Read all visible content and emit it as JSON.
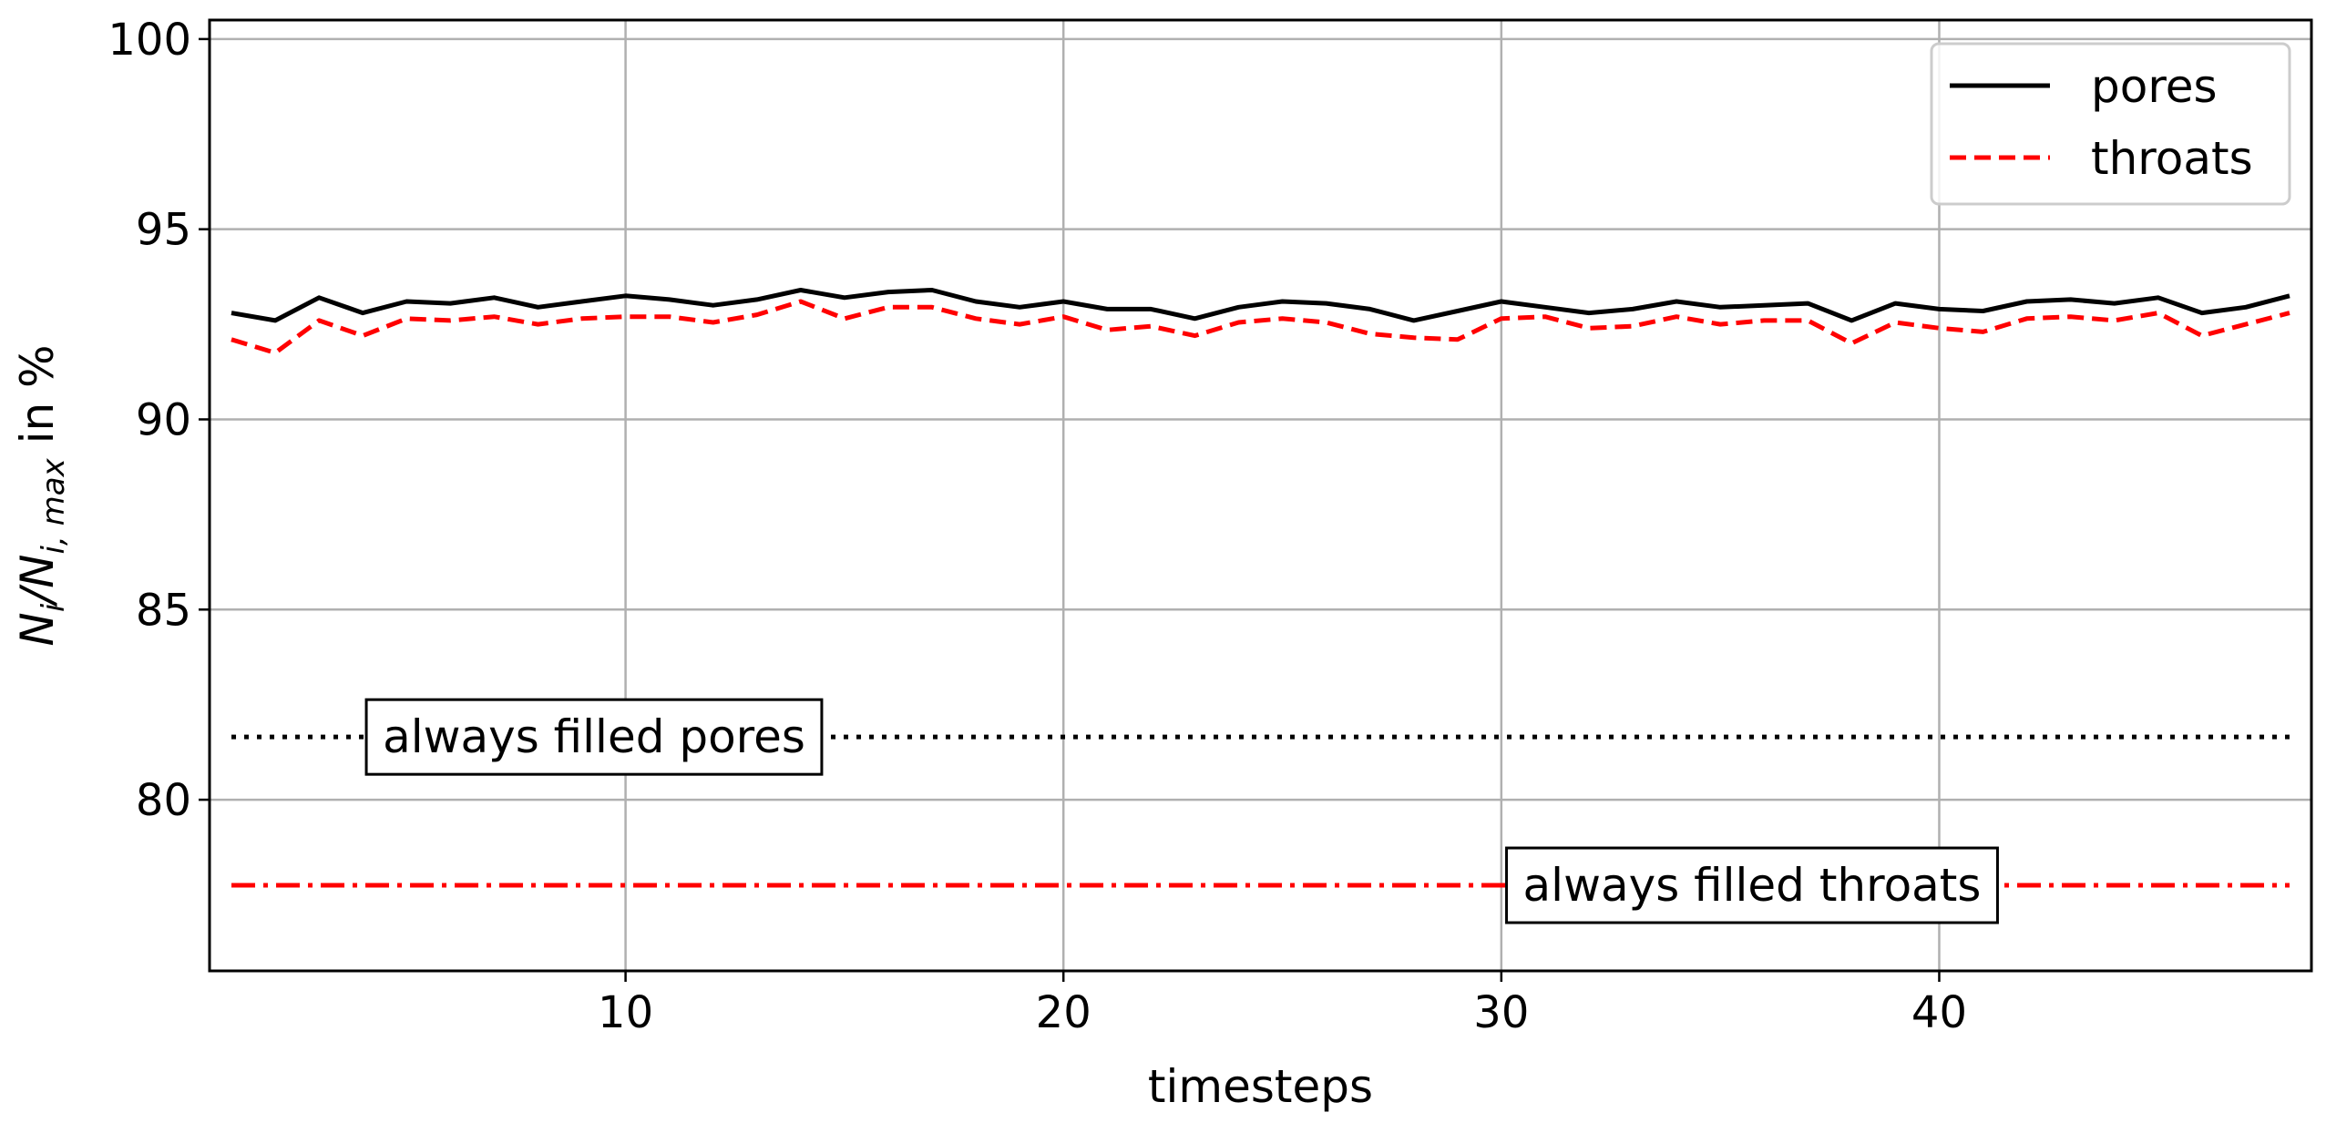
{
  "chart_data": {
    "type": "line",
    "xlabel": "timesteps",
    "ylabel": "N_i/N_i,max in %",
    "ylabel_parts": {
      "main": "N",
      "sub1": "i",
      "slash": "/N",
      "sub2": "i, max",
      "suffix": " in %"
    },
    "xlim": [
      0.5,
      48.5
    ],
    "ylim": [
      75.5,
      100.5
    ],
    "xticks": [
      10,
      20,
      30,
      40
    ],
    "yticks": [
      80,
      85,
      90,
      95,
      100
    ],
    "xtick_labels": [
      "10",
      "20",
      "30",
      "40"
    ],
    "ytick_labels": [
      "80",
      "85",
      "90",
      "95",
      "100"
    ],
    "grid": true,
    "legend_position": "top-right",
    "x": [
      1,
      2,
      3,
      4,
      5,
      6,
      7,
      8,
      9,
      10,
      11,
      12,
      13,
      14,
      15,
      16,
      17,
      18,
      19,
      20,
      21,
      22,
      23,
      24,
      25,
      26,
      27,
      28,
      29,
      30,
      31,
      32,
      33,
      34,
      35,
      36,
      37,
      38,
      39,
      40,
      41,
      42,
      43,
      44,
      45,
      46,
      47,
      48
    ],
    "series": [
      {
        "name": "pores",
        "color": "#000000",
        "style": "solid",
        "values": [
          92.8,
          92.6,
          93.2,
          92.8,
          93.1,
          93.05,
          93.2,
          92.95,
          93.1,
          93.25,
          93.15,
          93.0,
          93.15,
          93.4,
          93.2,
          93.35,
          93.4,
          93.1,
          92.95,
          93.1,
          92.9,
          92.9,
          92.65,
          92.95,
          93.1,
          93.05,
          92.9,
          92.6,
          92.85,
          93.1,
          92.95,
          92.8,
          92.9,
          93.1,
          92.95,
          93.0,
          93.05,
          92.6,
          93.05,
          92.9,
          92.85,
          93.1,
          93.15,
          93.05,
          93.2,
          92.8,
          92.95,
          93.25
        ]
      },
      {
        "name": "throats",
        "color": "#ff0000",
        "style": "dashed",
        "values": [
          92.1,
          91.75,
          92.6,
          92.2,
          92.65,
          92.6,
          92.7,
          92.5,
          92.65,
          92.7,
          92.7,
          92.55,
          92.75,
          93.1,
          92.65,
          92.95,
          92.95,
          92.65,
          92.5,
          92.7,
          92.35,
          92.45,
          92.2,
          92.55,
          92.65,
          92.55,
          92.25,
          92.15,
          92.1,
          92.65,
          92.7,
          92.4,
          92.45,
          92.7,
          92.5,
          92.6,
          92.6,
          92.0,
          92.55,
          92.4,
          92.3,
          92.65,
          92.7,
          92.6,
          92.8,
          92.2,
          92.5,
          92.8
        ]
      }
    ],
    "reference_lines": [
      {
        "value": 81.65,
        "color": "#000000",
        "style": "dotted",
        "label": "always filled pores"
      },
      {
        "value": 77.75,
        "color": "#ff0000",
        "style": "dashdot",
        "label": "always filled throats"
      }
    ]
  }
}
